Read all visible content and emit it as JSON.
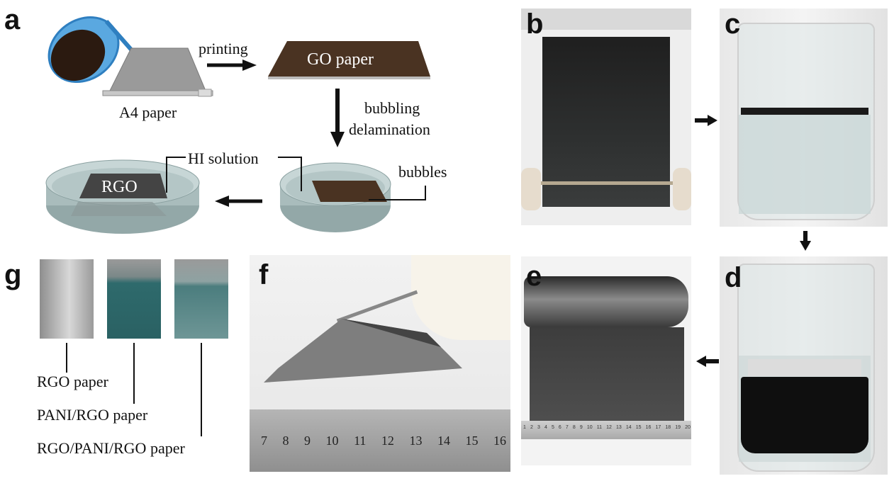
{
  "panels": {
    "a": "a",
    "b": "b",
    "c": "c",
    "d": "d",
    "e": "e",
    "f": "f",
    "g": "g"
  },
  "schematic": {
    "printing": "printing",
    "go_paper": "GO paper",
    "a4_paper": "A4 paper",
    "bubbling": "bubbling",
    "delamination": "delamination",
    "hi_solution": "HI solution",
    "bubbles": "bubbles",
    "rgo": "RGO"
  },
  "panel_g": {
    "label_1": "RGO paper",
    "label_2": "PANI/RGO paper",
    "label_3": "RGO/PANI/RGO paper"
  },
  "panel_f": {
    "ruler_ticks": [
      "7",
      "8",
      "9",
      "10",
      "11",
      "12",
      "13",
      "14",
      "15",
      "16"
    ]
  },
  "panel_e": {
    "ruler_ticks": [
      "1",
      "2",
      "3",
      "4",
      "5",
      "6",
      "7",
      "8",
      "9",
      "10",
      "11",
      "12",
      "13",
      "14",
      "15",
      "16",
      "17",
      "18",
      "19",
      "20"
    ]
  },
  "colors": {
    "go_brown": "#4a3322",
    "water": "#b8c8c8",
    "rgo_dark": "#333333",
    "pani_teal": "#2e6a6c"
  }
}
